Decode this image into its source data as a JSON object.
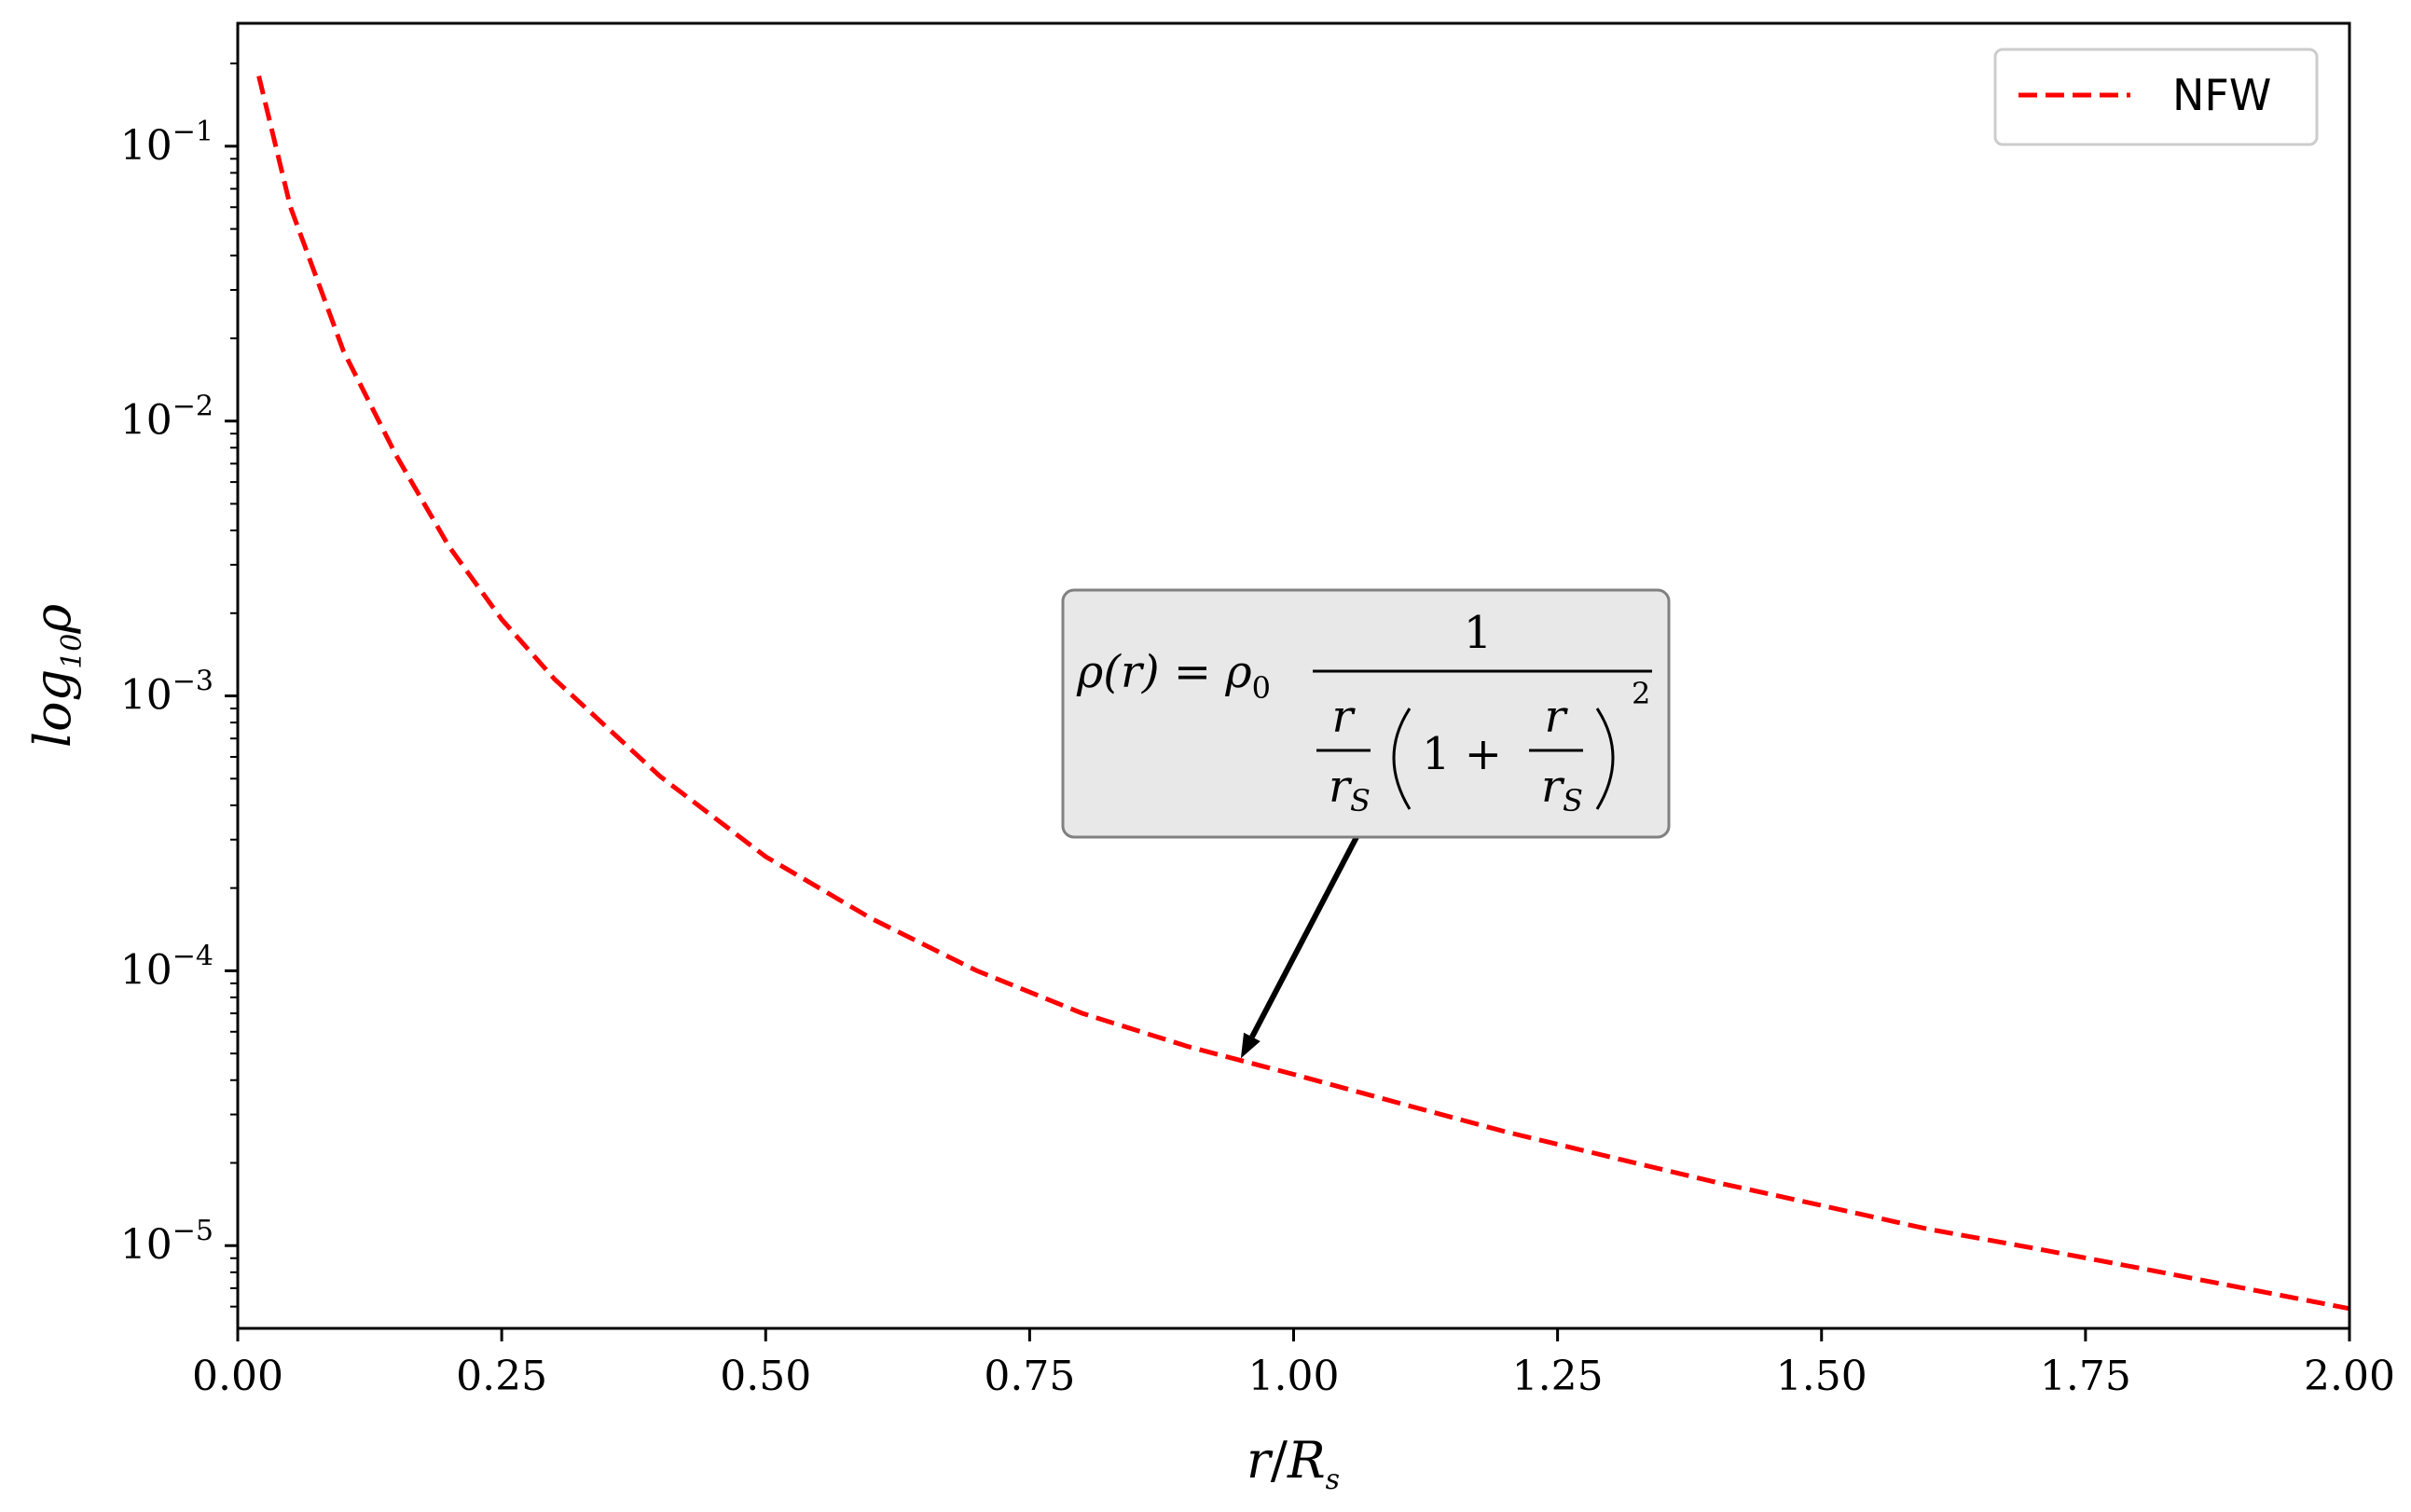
{
  "chart_data": {
    "type": "line",
    "xlabel": "r/R_s",
    "ylabel": "log_10 ρ",
    "xlim": [
      0.0,
      2.0
    ],
    "ylim": [
      5e-06,
      0.28
    ],
    "yscale": "log",
    "x_ticks": [
      0.0,
      0.25,
      0.5,
      0.75,
      1.0,
      1.25,
      1.5,
      1.75,
      2.0
    ],
    "x_tick_labels": [
      "0.00",
      "0.25",
      "0.50",
      "0.75",
      "1.00",
      "1.25",
      "1.50",
      "1.75",
      "2.00"
    ],
    "y_ticks": [
      1e-05,
      0.0001,
      0.001,
      0.01,
      0.1
    ],
    "y_tick_labels": [
      {
        "base": "10",
        "exp": "−5"
      },
      {
        "base": "10",
        "exp": "−4"
      },
      {
        "base": "10",
        "exp": "−3"
      },
      {
        "base": "10",
        "exp": "−2"
      },
      {
        "base": "10",
        "exp": "−1"
      }
    ],
    "legend": {
      "position": "top-right",
      "entries": [
        "NFW"
      ]
    },
    "series": [
      {
        "name": "NFW",
        "color": "#ff0000",
        "linestyle": "dashed",
        "points": [
          [
            0.02,
            0.18
          ],
          [
            0.05,
            0.06
          ],
          [
            0.1,
            0.018
          ],
          [
            0.15,
            0.0075
          ],
          [
            0.2,
            0.0035
          ],
          [
            0.25,
            0.0019
          ],
          [
            0.3,
            0.00115
          ],
          [
            0.4,
            0.00051
          ],
          [
            0.5,
            0.00026
          ],
          [
            0.6,
            0.000155
          ],
          [
            0.7,
            0.0001
          ],
          [
            0.8,
            7e-05
          ],
          [
            0.9,
            5.3e-05
          ],
          [
            1.0,
            4.2e-05
          ],
          [
            1.1,
            3.3e-05
          ],
          [
            1.2,
            2.6e-05
          ],
          [
            1.3,
            2.1e-05
          ],
          [
            1.4,
            1.7e-05
          ],
          [
            1.5,
            1.4e-05
          ],
          [
            1.6,
            1.15e-05
          ],
          [
            1.7,
            9.8e-06
          ],
          [
            1.8,
            8.3e-06
          ],
          [
            1.9,
            7e-06
          ],
          [
            2.0,
            5.9e-06
          ]
        ]
      }
    ],
    "annotation": {
      "target": [
        0.95,
        4.8e-05
      ],
      "lhs": "ρ(r) = ρ",
      "rho_sub": "0",
      "numerator": "1",
      "r": "r",
      "r_s": "r",
      "r_s_sub": "S",
      "one_plus": "1 +",
      "exponent": "2",
      "box_fill": "#e8e8e8"
    },
    "grid": false
  }
}
